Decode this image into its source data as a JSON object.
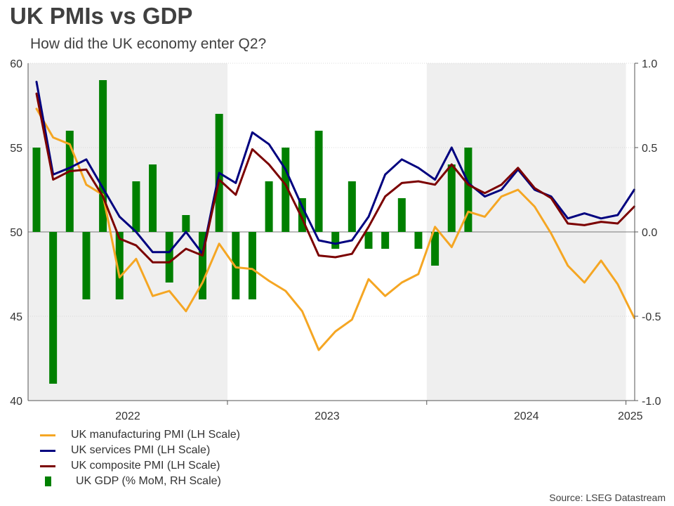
{
  "title": "UK PMIs vs GDP",
  "subtitle": "How did the UK economy enter Q2?",
  "source": "Source: LSEG Datastream",
  "colors": {
    "manufacturing": "#f5a623",
    "services": "#00007f",
    "composite": "#7b0000",
    "gdp": "#008000",
    "shade": "#efefef"
  },
  "chart_data": {
    "type": "line+bar",
    "title": "UK PMIs vs GDP",
    "left_axis": {
      "label": "",
      "range": [
        40,
        60
      ],
      "ticks": [
        "40",
        "45",
        "50",
        "55",
        "60"
      ]
    },
    "right_axis": {
      "label": "",
      "range": [
        -1.0,
        1.0
      ],
      "ticks": [
        "-1.0",
        "-0.5",
        "0.0",
        "0.5",
        "1.0"
      ]
    },
    "x_labels": [
      "2022",
      "2023",
      "2024",
      "2025"
    ],
    "shaded_years": [
      "2022",
      "2024"
    ],
    "months": [
      "2022-01",
      "2022-02",
      "2022-03",
      "2022-04",
      "2022-05",
      "2022-06",
      "2022-07",
      "2022-08",
      "2022-09",
      "2022-10",
      "2022-11",
      "2022-12",
      "2023-01",
      "2023-02",
      "2023-03",
      "2023-04",
      "2023-05",
      "2023-06",
      "2023-07",
      "2023-08",
      "2023-09",
      "2023-10",
      "2023-11",
      "2023-12",
      "2024-01",
      "2024-02",
      "2024-03",
      "2024-04",
      "2024-05",
      "2024-06",
      "2024-07",
      "2024-08",
      "2024-09",
      "2024-10",
      "2024-11",
      "2024-12",
      "2025-01",
      "2025-02",
      "2025-03",
      "2025-04"
    ],
    "series": [
      {
        "name": "UK manufacturing PMI (LH Scale)",
        "axis": "left",
        "kind": "line",
        "values": [
          57.3,
          55.6,
          55.2,
          52.8,
          52.2,
          47.3,
          48.4,
          46.2,
          46.5,
          45.3,
          47.0,
          49.3,
          47.9,
          47.8,
          47.1,
          46.5,
          45.3,
          43.0,
          44.1,
          44.8,
          47.2,
          46.2,
          47.0,
          47.5,
          50.3,
          49.1,
          51.2,
          50.9,
          52.1,
          52.5,
          51.5,
          49.9,
          48.0,
          47.0,
          48.3,
          46.9,
          44.9
        ]
      },
      {
        "name": "UK services PMI (LH Scale)",
        "axis": "left",
        "kind": "line",
        "values": [
          58.9,
          53.4,
          53.8,
          54.3,
          52.6,
          50.9,
          50.0,
          48.8,
          48.8,
          50.0,
          48.7,
          53.5,
          52.9,
          55.9,
          55.2,
          53.7,
          51.5,
          49.5,
          49.3,
          49.5,
          50.9,
          53.4,
          54.3,
          53.8,
          53.1,
          55.0,
          52.9,
          52.1,
          52.5,
          53.7,
          52.5,
          52.1,
          50.8,
          51.1,
          50.8,
          51.0,
          52.5
        ]
      },
      {
        "name": "UK composite PMI (LH Scale)",
        "axis": "left",
        "kind": "line",
        "values": [
          58.2,
          53.1,
          53.6,
          53.7,
          52.1,
          49.6,
          49.2,
          48.2,
          48.2,
          49.0,
          48.6,
          53.1,
          52.2,
          54.9,
          54.0,
          52.8,
          50.8,
          48.6,
          48.5,
          48.7,
          50.3,
          52.1,
          52.9,
          53.0,
          52.8,
          54.0,
          52.8,
          52.3,
          52.8,
          53.8,
          52.6,
          52.0,
          50.5,
          50.4,
          50.6,
          50.5,
          51.5
        ]
      },
      {
        "name": "UK GDP (% MoM, RH Scale)",
        "axis": "right",
        "kind": "bar",
        "values": [
          0.5,
          -0.9,
          0.6,
          -0.4,
          0.9,
          -0.4,
          0.3,
          0.4,
          -0.3,
          0.1,
          -0.4,
          0.7,
          -0.4,
          -0.4,
          0.3,
          0.5,
          0.2,
          0.6,
          -0.1,
          0.3,
          -0.1,
          -0.1,
          0.2,
          -0.1,
          -0.2,
          0.4,
          0.5
        ]
      }
    ]
  }
}
